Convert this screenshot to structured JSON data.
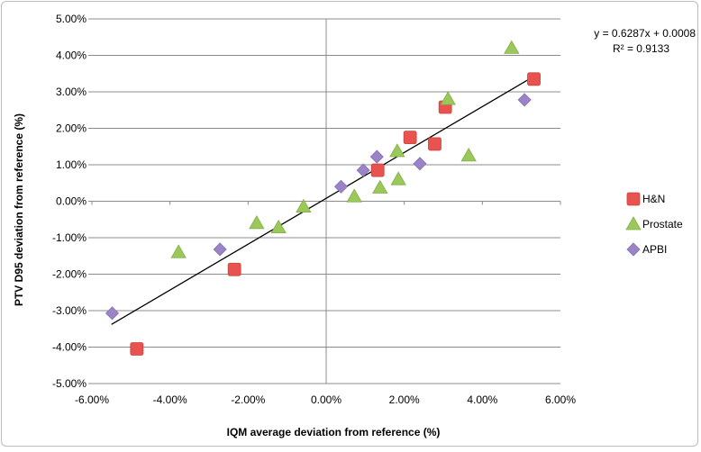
{
  "chart_data": {
    "type": "scatter",
    "xlabel": "IQM average deviation from reference (%)",
    "ylabel": "PTV D95 deviation from reference (%)",
    "xlim": [
      -0.06,
      0.06
    ],
    "ylim": [
      -0.05,
      0.05
    ],
    "x_ticks": [
      -0.06,
      -0.04,
      -0.02,
      0.0,
      0.02,
      0.04,
      0.06
    ],
    "x_tick_labels": [
      "-6.00%",
      "-4.00%",
      "-2.00%",
      "0.00%",
      "2.00%",
      "4.00%",
      "6.00%"
    ],
    "y_ticks": [
      0.05,
      0.04,
      0.03,
      0.02,
      0.01,
      0.0,
      -0.01,
      -0.02,
      -0.03,
      -0.04,
      -0.05
    ],
    "y_tick_labels": [
      "5.00%",
      "4.00%",
      "3.00%",
      "2.00%",
      "1.00%",
      "0.00%",
      "-1.00%",
      "-2.00%",
      "-3.00%",
      "-4.00%",
      "-5.00%"
    ],
    "grid": "horizontal",
    "legend_position": "right",
    "series": [
      {
        "name": "H&N",
        "marker": "square",
        "color": "#e8534f",
        "points": [
          [
            -0.0485,
            -0.0405
          ],
          [
            -0.0235,
            -0.0187
          ],
          [
            0.0132,
            0.0085
          ],
          [
            0.0215,
            0.0175
          ],
          [
            0.0278,
            0.0157
          ],
          [
            0.0305,
            0.0258
          ],
          [
            0.0532,
            0.0335
          ]
        ]
      },
      {
        "name": "Prostate",
        "marker": "triangle",
        "color": "#9bc85a",
        "points": [
          [
            -0.0378,
            -0.014
          ],
          [
            -0.0178,
            -0.006
          ],
          [
            -0.0122,
            -0.0072
          ],
          [
            -0.0058,
            -0.0015
          ],
          [
            0.0072,
            0.0013
          ],
          [
            0.0138,
            0.0037
          ],
          [
            0.0182,
            0.0137
          ],
          [
            0.0185,
            0.006
          ],
          [
            0.0312,
            0.028
          ],
          [
            0.0365,
            0.0125
          ],
          [
            0.0475,
            0.042
          ]
        ]
      },
      {
        "name": "APBI",
        "marker": "diamond",
        "color": "#9b84c6",
        "points": [
          [
            -0.0548,
            -0.0307
          ],
          [
            -0.0272,
            -0.0132
          ],
          [
            0.0038,
            0.004
          ],
          [
            0.0095,
            0.0085
          ],
          [
            0.013,
            0.0122
          ],
          [
            0.024,
            0.0103
          ],
          [
            0.0508,
            0.0278
          ]
        ]
      }
    ],
    "trendline": {
      "slope": 0.6287,
      "intercept": 0.0008,
      "x_range": [
        -0.055,
        0.053
      ]
    },
    "annotation_equation": "y = 0.6287x + 0.0008",
    "annotation_r2": "R² = 0.9133"
  }
}
